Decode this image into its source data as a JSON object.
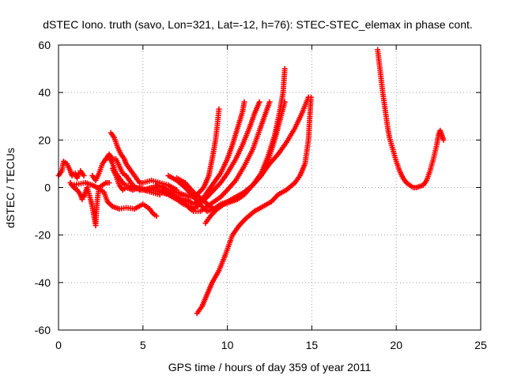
{
  "chart_data": {
    "type": "scatter",
    "title": "dSTEC Iono. truth (savo, Lon=321, Lat=-12, h=76): STEC-STEC_elemax in phase cont.",
    "xlabel": "GPS time / hours of day 359 of year 2011",
    "ylabel": "dSTEC  / TECUs",
    "xlim": [
      0,
      25
    ],
    "ylim": [
      -60,
      60
    ],
    "xticks": [
      0,
      5,
      10,
      15,
      20,
      25
    ],
    "yticks": [
      -60,
      -40,
      -20,
      0,
      20,
      40,
      60
    ],
    "grid": true,
    "marker": "plus",
    "series_color": "#ff0000",
    "series": [
      {
        "points": [
          [
            0,
            5
          ],
          [
            0.2,
            7
          ],
          [
            0.3,
            11
          ],
          [
            0.5,
            10
          ],
          [
            0.7,
            7
          ],
          [
            0.8,
            5
          ],
          [
            1.0,
            6
          ],
          [
            1.1,
            4
          ],
          [
            1.2,
            6
          ],
          [
            1.3,
            7
          ],
          [
            1.5,
            5
          ]
        ]
      },
      {
        "points": [
          [
            0.7,
            2
          ],
          [
            0.9,
            0
          ],
          [
            1.1,
            -1
          ],
          [
            1.3,
            -3
          ],
          [
            1.4,
            -5
          ],
          [
            1.5,
            -4
          ],
          [
            1.6,
            -2
          ],
          [
            1.7,
            0
          ],
          [
            1.9,
            -5
          ],
          [
            2.0,
            -8
          ],
          [
            2.1,
            -12
          ],
          [
            2.2,
            -16
          ],
          [
            2.25,
            -10
          ],
          [
            2.3,
            -5
          ],
          [
            2.4,
            0
          ],
          [
            2.6,
            1
          ],
          [
            2.8,
            2
          ],
          [
            3.0,
            2
          ]
        ]
      },
      {
        "points": [
          [
            0.8,
            1
          ],
          [
            1.2,
            1.5
          ],
          [
            1.6,
            2
          ],
          [
            2.0,
            1
          ],
          [
            2.3,
            0
          ],
          [
            2.7,
            -2
          ],
          [
            2.9,
            -6
          ],
          [
            3.2,
            -8
          ],
          [
            3.6,
            -9
          ],
          [
            4.0,
            -8.5
          ],
          [
            4.5,
            -9
          ],
          [
            5.0,
            -7
          ],
          [
            5.4,
            -9
          ],
          [
            5.6,
            -11
          ],
          [
            5.8,
            -12
          ]
        ]
      },
      {
        "points": [
          [
            2.0,
            5
          ],
          [
            2.2,
            3
          ],
          [
            2.4,
            6
          ],
          [
            2.6,
            10
          ],
          [
            2.8,
            12
          ],
          [
            3.0,
            13
          ],
          [
            3.2,
            10
          ],
          [
            3.4,
            6
          ],
          [
            3.6,
            4
          ],
          [
            3.8,
            2
          ],
          [
            4.0,
            1
          ],
          [
            4.5,
            0
          ],
          [
            5.0,
            -1
          ],
          [
            5.5,
            0
          ],
          [
            6.0,
            -1
          ]
        ]
      },
      {
        "points": [
          [
            3.1,
            23
          ],
          [
            3.3,
            21
          ],
          [
            3.5,
            17
          ],
          [
            3.7,
            14
          ],
          [
            3.9,
            12
          ],
          [
            4.0,
            10
          ],
          [
            4.2,
            8
          ],
          [
            4.4,
            6
          ],
          [
            4.6,
            4
          ],
          [
            4.8,
            2
          ],
          [
            5.0,
            2
          ],
          [
            5.5,
            3
          ],
          [
            6.0,
            2
          ],
          [
            6.5,
            1
          ],
          [
            7.0,
            -1
          ]
        ]
      },
      {
        "points": [
          [
            2.8,
            12
          ],
          [
            3.0,
            14
          ],
          [
            3.2,
            12
          ],
          [
            3.4,
            12
          ],
          [
            3.6,
            9
          ],
          [
            3.8,
            6
          ],
          [
            4.0,
            5
          ],
          [
            4.2,
            3
          ],
          [
            4.4,
            1
          ],
          [
            4.6,
            0
          ],
          [
            4.8,
            -1
          ],
          [
            5.0,
            -1
          ],
          [
            5.5,
            -2
          ],
          [
            6.0,
            -3
          ]
        ]
      },
      {
        "points": [
          [
            3.2,
            8
          ],
          [
            3.4,
            5
          ],
          [
            3.6,
            1
          ],
          [
            3.8,
            -1
          ],
          [
            4.0,
            0
          ],
          [
            4.4,
            -1
          ],
          [
            4.8,
            0
          ],
          [
            5.2,
            -1
          ],
          [
            5.6,
            0
          ],
          [
            6.0,
            0.5
          ],
          [
            6.5,
            -1
          ],
          [
            7.0,
            -2
          ],
          [
            7.4,
            -3
          ],
          [
            7.8,
            -4
          ],
          [
            8.2,
            -3
          ],
          [
            8.6,
            0
          ],
          [
            8.9,
            5
          ],
          [
            9.1,
            12
          ],
          [
            9.3,
            20
          ],
          [
            9.4,
            26
          ],
          [
            9.5,
            33
          ]
        ]
      },
      {
        "points": [
          [
            5.0,
            -1
          ],
          [
            5.5,
            -1
          ],
          [
            6.0,
            -2
          ],
          [
            6.5,
            -3
          ],
          [
            7.0,
            -4
          ],
          [
            7.5,
            -5
          ],
          [
            7.8,
            -6
          ],
          [
            8.0,
            -7
          ],
          [
            8.2,
            -6
          ],
          [
            8.5,
            -5
          ],
          [
            8.8,
            -2
          ],
          [
            9.2,
            2
          ],
          [
            9.6,
            6
          ],
          [
            10.0,
            12
          ],
          [
            10.3,
            18
          ],
          [
            10.6,
            25
          ],
          [
            10.9,
            32
          ],
          [
            11.0,
            36
          ]
        ]
      },
      {
        "points": [
          [
            5.5,
            0
          ],
          [
            6.0,
            -1
          ],
          [
            6.5,
            -3
          ],
          [
            7.0,
            -5
          ],
          [
            7.4,
            -7
          ],
          [
            7.8,
            -8
          ],
          [
            8.0,
            -9
          ],
          [
            8.2,
            -8
          ],
          [
            8.5,
            -6
          ],
          [
            8.8,
            -4
          ],
          [
            9.2,
            -1
          ],
          [
            9.6,
            2
          ],
          [
            10.0,
            6
          ],
          [
            10.5,
            12
          ],
          [
            10.9,
            18
          ],
          [
            11.3,
            25
          ],
          [
            11.6,
            31
          ],
          [
            11.9,
            36
          ]
        ]
      },
      {
        "points": [
          [
            5.8,
            1
          ],
          [
            6.2,
            0
          ],
          [
            6.6,
            -2
          ],
          [
            7.0,
            -4
          ],
          [
            7.4,
            -6
          ],
          [
            7.8,
            -9
          ],
          [
            8.0,
            -10
          ],
          [
            8.4,
            -10
          ],
          [
            8.8,
            -8
          ],
          [
            9.2,
            -6
          ],
          [
            9.6,
            -4
          ],
          [
            10.0,
            -1
          ],
          [
            10.5,
            3
          ],
          [
            11.0,
            9
          ],
          [
            11.5,
            16
          ],
          [
            11.9,
            24
          ],
          [
            12.2,
            30
          ],
          [
            12.5,
            36
          ]
        ]
      },
      {
        "points": [
          [
            6.5,
            5
          ],
          [
            7.0,
            3
          ],
          [
            7.5,
            0
          ],
          [
            8.0,
            -4
          ],
          [
            8.5,
            -8
          ],
          [
            8.8,
            -10
          ],
          [
            9.2,
            -9
          ],
          [
            9.6,
            -7
          ],
          [
            10.0,
            -6
          ],
          [
            10.5,
            -4
          ],
          [
            11.0,
            -2
          ],
          [
            11.5,
            1
          ],
          [
            12.0,
            5
          ],
          [
            12.4,
            11
          ],
          [
            12.8,
            20
          ],
          [
            13.1,
            28
          ],
          [
            13.4,
            36
          ]
        ]
      },
      {
        "points": [
          [
            7.0,
            4
          ],
          [
            7.5,
            2
          ],
          [
            8.0,
            -2
          ],
          [
            8.5,
            -5
          ],
          [
            9.0,
            -8
          ],
          [
            9.2,
            -9
          ],
          [
            9.6,
            -8
          ],
          [
            10.0,
            -6
          ],
          [
            10.5,
            -4
          ],
          [
            11.0,
            -2
          ],
          [
            11.5,
            1
          ],
          [
            12.0,
            6
          ],
          [
            12.4,
            13
          ],
          [
            12.8,
            22
          ],
          [
            13.1,
            32
          ],
          [
            13.3,
            40
          ],
          [
            13.4,
            50
          ]
        ]
      },
      {
        "points": [
          [
            8.7,
            -15
          ],
          [
            9.0,
            -12
          ],
          [
            9.4,
            -9
          ],
          [
            9.8,
            -7
          ],
          [
            10.2,
            -6
          ],
          [
            10.6,
            -5
          ],
          [
            11.0,
            -3
          ],
          [
            11.5,
            1
          ],
          [
            12.0,
            5
          ],
          [
            12.5,
            10
          ],
          [
            13.0,
            14
          ],
          [
            13.5,
            19
          ],
          [
            14.0,
            25
          ],
          [
            14.4,
            31
          ],
          [
            14.8,
            38
          ]
        ]
      },
      {
        "points": [
          [
            8.2,
            -53
          ],
          [
            8.5,
            -50
          ],
          [
            8.8,
            -45
          ],
          [
            9.1,
            -40
          ],
          [
            9.5,
            -35
          ],
          [
            9.9,
            -28
          ],
          [
            10.3,
            -20
          ],
          [
            10.7,
            -16
          ],
          [
            11.1,
            -13
          ],
          [
            11.6,
            -10
          ],
          [
            12.1,
            -8
          ],
          [
            12.6,
            -6
          ],
          [
            13.0,
            -3
          ],
          [
            13.5,
            -1
          ],
          [
            14.0,
            2
          ],
          [
            14.3,
            5
          ],
          [
            14.6,
            10
          ],
          [
            14.8,
            20
          ],
          [
            14.95,
            38
          ]
        ]
      },
      {
        "points": [
          [
            18.9,
            58
          ],
          [
            19.0,
            52
          ],
          [
            19.1,
            46
          ],
          [
            19.2,
            40
          ],
          [
            19.3,
            35
          ],
          [
            19.4,
            30
          ],
          [
            19.5,
            25
          ],
          [
            19.6,
            21
          ],
          [
            19.8,
            16
          ],
          [
            20.0,
            11
          ],
          [
            20.2,
            7
          ],
          [
            20.4,
            4
          ],
          [
            20.6,
            2
          ],
          [
            20.8,
            1
          ],
          [
            21.0,
            0
          ],
          [
            21.2,
            0
          ],
          [
            21.4,
            0.5
          ],
          [
            21.6,
            1
          ],
          [
            21.8,
            3
          ],
          [
            22.0,
            7
          ],
          [
            22.2,
            12
          ],
          [
            22.4,
            18
          ],
          [
            22.5,
            22
          ],
          [
            22.6,
            24
          ],
          [
            22.7,
            22
          ],
          [
            22.8,
            20
          ]
        ]
      }
    ]
  }
}
